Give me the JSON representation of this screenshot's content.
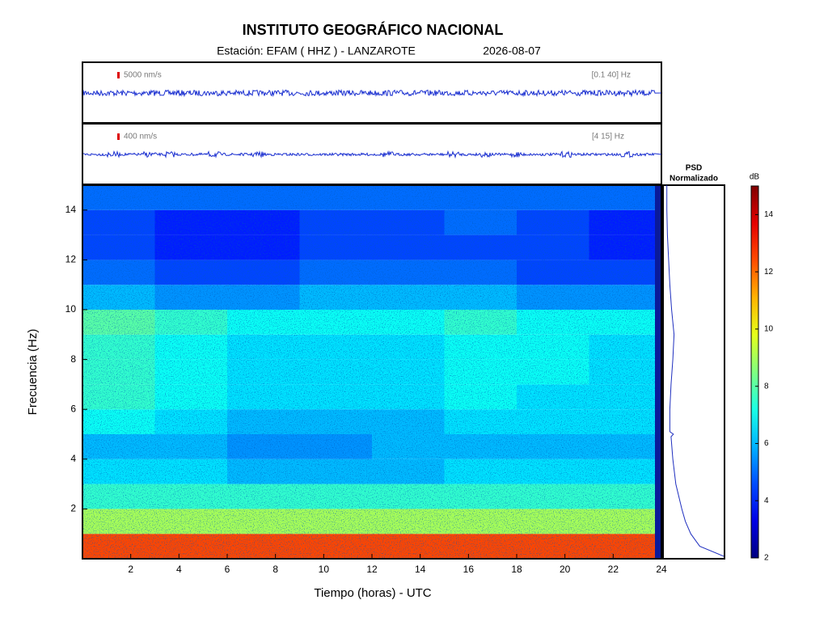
{
  "chart_data": [
    {
      "type": "heatmap",
      "title": "INSTITUTO GEOGRÁFICO NACIONAL",
      "subtitle": "Estación:  EFAM ( HHZ ) - LANZAROTE",
      "date": "2026-08-07",
      "x_label": "Tiempo (horas) - UTC",
      "y_label": "Frecuencia  (Hz)",
      "xlim": [
        0,
        24
      ],
      "xticks": [
        2,
        4,
        6,
        8,
        10,
        12,
        14,
        16,
        18,
        20,
        22,
        24
      ],
      "ylim": [
        0,
        15
      ],
      "yticks": [
        2,
        4,
        6,
        8,
        10,
        12,
        14
      ],
      "xbins": [
        0,
        3,
        6,
        9,
        12,
        15,
        18,
        21,
        24
      ],
      "ybins": [
        0,
        1,
        2,
        3,
        4,
        5,
        6,
        7,
        8,
        9,
        10,
        11,
        12,
        13,
        14,
        15
      ],
      "z": [
        [
          12.5,
          12.5,
          12.5,
          12.5,
          12.5,
          12.5,
          12.5,
          12.5
        ],
        [
          9,
          9,
          9,
          9,
          9,
          9,
          9,
          9
        ],
        [
          7.5,
          7.5,
          7.5,
          7.5,
          7.5,
          7.5,
          7.5,
          7.5
        ],
        [
          6.5,
          6.5,
          6,
          6,
          6,
          6.5,
          6.5,
          6.5
        ],
        [
          6,
          6,
          5.5,
          5.5,
          6,
          6,
          6,
          6
        ],
        [
          7,
          6.5,
          6,
          6,
          6,
          6.5,
          6.5,
          6.5
        ],
        [
          7.5,
          7,
          6.5,
          6.5,
          6.5,
          7,
          6.5,
          6.5
        ],
        [
          7.5,
          7,
          6.5,
          6.5,
          6.5,
          7,
          7,
          6.5
        ],
        [
          7.5,
          7,
          6.5,
          6.5,
          6.5,
          7,
          7,
          6.5
        ],
        [
          8,
          7.5,
          7,
          7,
          7,
          7.5,
          7,
          7
        ],
        [
          6,
          5.5,
          5.5,
          6,
          6,
          6,
          5.5,
          5.5
        ],
        [
          5,
          4.5,
          4.5,
          5,
          5,
          5,
          4.5,
          4.5
        ],
        [
          4.5,
          4,
          4,
          4.5,
          4.5,
          4.5,
          4.5,
          4
        ],
        [
          4.5,
          4,
          4,
          4.5,
          4.5,
          5,
          4.5,
          4
        ],
        [
          5,
          5,
          5,
          5,
          5,
          5,
          5,
          5
        ]
      ],
      "colorbar_label": "dB",
      "clim": [
        2,
        15
      ],
      "cticks": [
        2,
        4,
        6,
        8,
        10,
        12,
        14
      ],
      "colormap": "jet"
    },
    {
      "type": "line",
      "title": "PSD",
      "subtitle": "Normalizado",
      "color": "#1f2fbf",
      "xlim": [
        0,
        1
      ],
      "y": [
        0.1,
        0.5,
        1,
        1.5,
        2,
        3,
        4,
        4.9,
        5,
        5.1,
        6,
        7,
        8,
        9,
        10,
        11,
        12,
        13,
        14,
        15
      ],
      "values": [
        1,
        0.6,
        0.45,
        0.36,
        0.3,
        0.2,
        0.15,
        0.12,
        0.16,
        0.1,
        0.1,
        0.12,
        0.15,
        0.17,
        0.13,
        0.1,
        0.08,
        0.06,
        0.05,
        0.05
      ]
    }
  ],
  "traces": [
    {
      "scale": "5000 nm/s",
      "band": "[0.1 40] Hz"
    },
    {
      "scale": "400 nm/s",
      "band": "[4 15] Hz"
    }
  ]
}
